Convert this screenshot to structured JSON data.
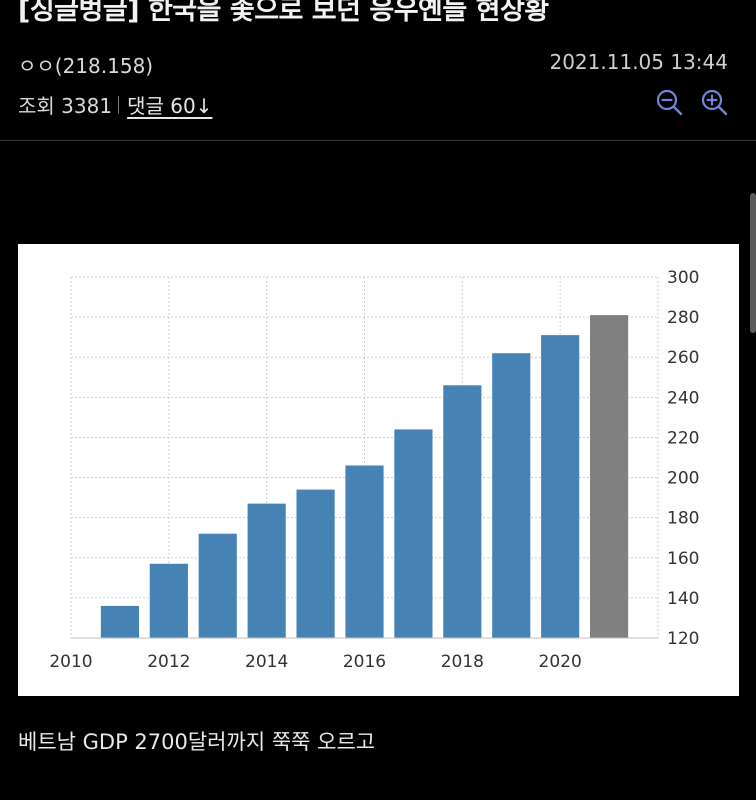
{
  "post": {
    "title": "[싱글벙글] 한국을 좇으로 보던 응우옌들 현상황",
    "author": "ㅇㅇ(218.158)",
    "datetime": "2021.11.05 13:44",
    "views": "조회 3381",
    "comments": "댓글 60↓"
  },
  "icons": {
    "zoom_out": "zoom-out-icon",
    "zoom_in": "zoom-in-icon",
    "accent": "#6f86d9"
  },
  "chart_data": {
    "type": "bar",
    "x": [
      2011,
      2012,
      2013,
      2014,
      2015,
      2016,
      2017,
      2018,
      2019,
      2020,
      2021
    ],
    "values": [
      136,
      157,
      172,
      187,
      194,
      206,
      224,
      246,
      262,
      271,
      281
    ],
    "bar_colors": [
      "#4682b4",
      "#4682b4",
      "#4682b4",
      "#4682b4",
      "#4682b4",
      "#4682b4",
      "#4682b4",
      "#4682b4",
      "#4682b4",
      "#4682b4",
      "#808080"
    ],
    "xticks": [
      "2010",
      "2012",
      "2014",
      "2016",
      "2018",
      "2020"
    ],
    "xtick_values": [
      2010,
      2012,
      2014,
      2016,
      2018,
      2020
    ],
    "yticks": [
      "120",
      "140",
      "160",
      "180",
      "200",
      "220",
      "240",
      "260",
      "280",
      "300"
    ],
    "ylim": [
      120,
      300
    ],
    "xlim": [
      2010,
      2022
    ],
    "grid": true,
    "y_axis_side": "right"
  },
  "caption": "베트남 GDP 2700달러까지 쭉쭉 오르고"
}
